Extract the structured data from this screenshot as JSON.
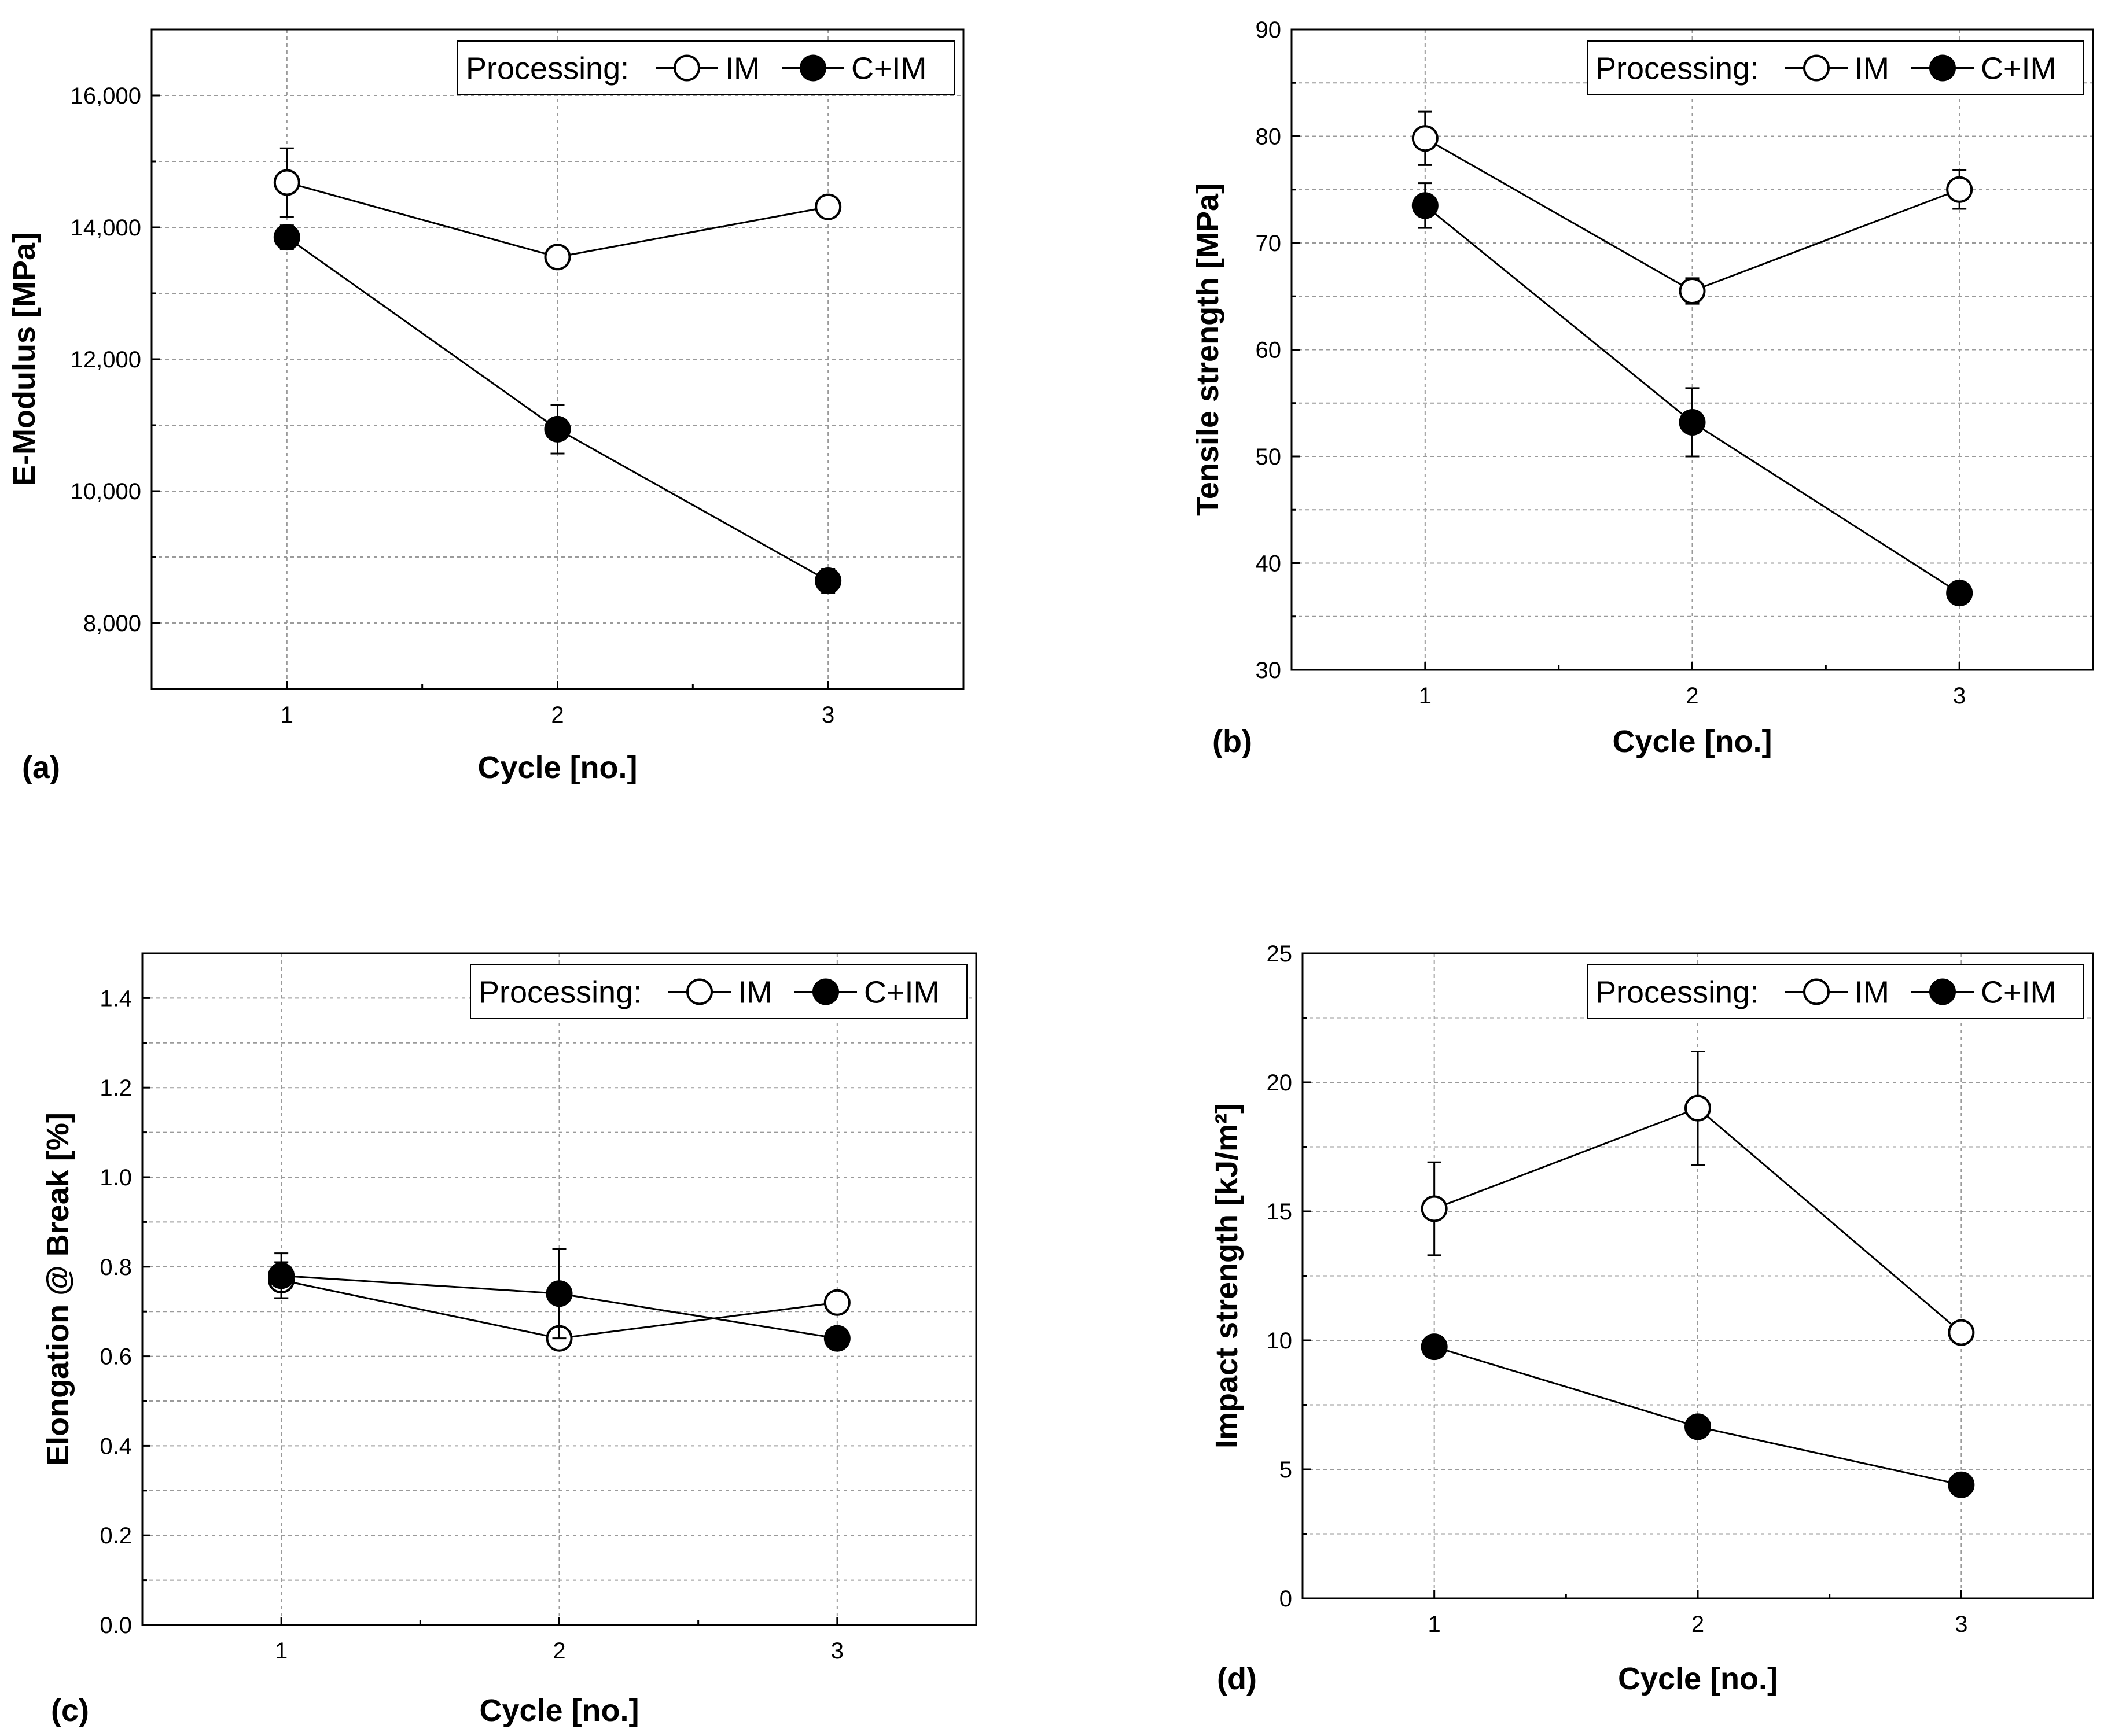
{
  "chart_data": [
    {
      "type": "line",
      "panel_label": "(a)",
      "xlabel": "Cycle [no.]",
      "ylabel": "E-Modulus [MPa]",
      "x": [
        1,
        2,
        3
      ],
      "xticks": [
        "1",
        "2",
        "3"
      ],
      "xlim": [
        0.5,
        3.5
      ],
      "ylim": [
        7000,
        17000
      ],
      "yticks": [
        8000,
        10000,
        12000,
        14000,
        16000
      ],
      "ytick_labels": [
        "8,000",
        "10,000",
        "12,000",
        "14,000",
        "16,000"
      ],
      "yminor": [
        9000,
        11000,
        13000,
        15000
      ],
      "grid": true,
      "legend": {
        "title": "Processing:",
        "placement": "top-right"
      },
      "series": [
        {
          "name": "IM",
          "marker": "open-circle",
          "values": [
            14680,
            13550,
            14310
          ],
          "errors": [
            520,
            100,
            150
          ]
        },
        {
          "name": "C+IM",
          "marker": "filled-circle",
          "values": [
            13850,
            10940,
            8640
          ],
          "errors": [
            180,
            370,
            180
          ]
        }
      ]
    },
    {
      "type": "line",
      "panel_label": "(b)",
      "xlabel": "Cycle [no.]",
      "ylabel": "Tensile strength [MPa]",
      "x": [
        1,
        2,
        3
      ],
      "xticks": [
        "1",
        "2",
        "3"
      ],
      "xlim": [
        0.5,
        3.5
      ],
      "ylim": [
        30,
        90
      ],
      "yticks": [
        30,
        40,
        50,
        60,
        70,
        80,
        90
      ],
      "ytick_labels": [
        "30",
        "40",
        "50",
        "60",
        "70",
        "80",
        "90"
      ],
      "yminor": [
        35,
        45,
        55,
        65,
        75,
        85
      ],
      "grid": true,
      "legend": {
        "title": "Processing:",
        "placement": "top-right"
      },
      "series": [
        {
          "name": "IM",
          "marker": "open-circle",
          "values": [
            79.8,
            65.5,
            75.0
          ],
          "errors": [
            2.5,
            1.2,
            1.8
          ]
        },
        {
          "name": "C+IM",
          "marker": "filled-circle",
          "values": [
            73.5,
            53.2,
            37.2
          ],
          "errors": [
            2.1,
            3.2,
            0.6
          ]
        }
      ]
    },
    {
      "type": "line",
      "panel_label": "(c)",
      "xlabel": "Cycle [no.]",
      "ylabel": "Elongation @ Break [%]",
      "x": [
        1,
        2,
        3
      ],
      "xticks": [
        "1",
        "2",
        "3"
      ],
      "xlim": [
        0.5,
        3.5
      ],
      "ylim": [
        0.0,
        1.5
      ],
      "yticks": [
        0.0,
        0.2,
        0.4,
        0.6,
        0.8,
        1.0,
        1.2,
        1.4
      ],
      "ytick_labels": [
        "0.0",
        "0.2",
        "0.4",
        "0.6",
        "0.8",
        "1.0",
        "1.2",
        "1.4"
      ],
      "yminor": [
        0.1,
        0.3,
        0.5,
        0.7,
        0.9,
        1.1,
        1.3
      ],
      "grid": true,
      "legend": {
        "title": "Processing:",
        "placement": "top-right"
      },
      "series": [
        {
          "name": "IM",
          "marker": "open-circle",
          "values": [
            0.77,
            0.64,
            0.72
          ],
          "errors": [
            0.04,
            0.02,
            0.015
          ]
        },
        {
          "name": "C+IM",
          "marker": "filled-circle",
          "values": [
            0.78,
            0.74,
            0.64
          ],
          "errors": [
            0.05,
            0.1,
            0.01
          ]
        }
      ]
    },
    {
      "type": "line",
      "panel_label": "(d)",
      "xlabel": "Cycle [no.]",
      "ylabel": "Impact strength [kJ/m²]",
      "x": [
        1,
        2,
        3
      ],
      "xticks": [
        "1",
        "2",
        "3"
      ],
      "xlim": [
        0.5,
        3.5
      ],
      "ylim": [
        0,
        25
      ],
      "yticks": [
        0,
        5,
        10,
        15,
        20,
        25
      ],
      "ytick_labels": [
        "0",
        "5",
        "10",
        "15",
        "20",
        "25"
      ],
      "yminor": [
        2.5,
        7.5,
        12.5,
        17.5,
        22.5
      ],
      "grid": true,
      "legend": {
        "title": "Processing:",
        "placement": "top-right"
      },
      "series": [
        {
          "name": "IM",
          "marker": "open-circle",
          "values": [
            15.1,
            19.0,
            10.3
          ],
          "errors": [
            1.8,
            2.2,
            0.2
          ]
        },
        {
          "name": "C+IM",
          "marker": "filled-circle",
          "values": [
            9.75,
            6.65,
            4.4
          ],
          "errors": [
            0.2,
            0.2,
            0.15
          ]
        }
      ]
    }
  ]
}
